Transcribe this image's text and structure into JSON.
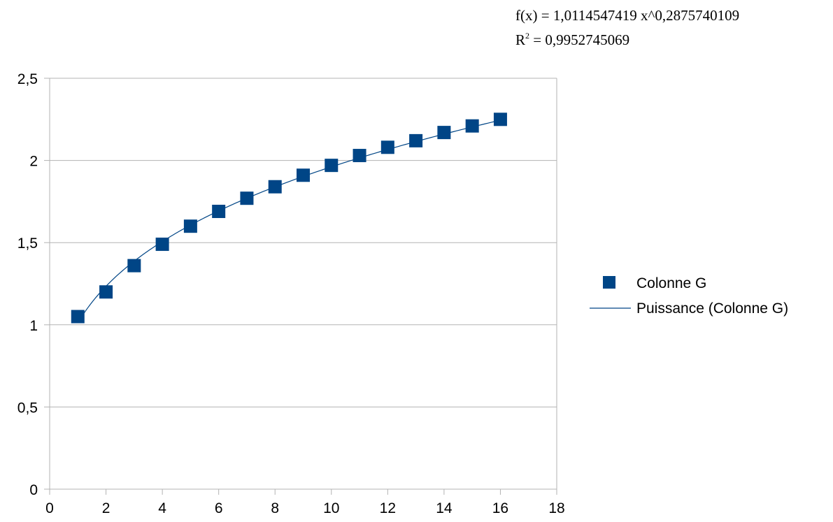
{
  "chart_data": {
    "type": "scatter",
    "title": "",
    "xlabel": "",
    "ylabel": "",
    "xlim": [
      0,
      18
    ],
    "ylim": [
      0,
      2.5
    ],
    "x_ticks": [
      0,
      2,
      4,
      6,
      8,
      10,
      12,
      14,
      16,
      18
    ],
    "x_tick_labels": [
      "0",
      "2",
      "4",
      "6",
      "8",
      "10",
      "12",
      "14",
      "16",
      "18"
    ],
    "y_ticks": [
      0,
      0.5,
      1,
      1.5,
      2,
      2.5
    ],
    "y_tick_labels": [
      "0",
      "0,5",
      "1",
      "1,5",
      "2",
      "2,5"
    ],
    "grid": "horizontal",
    "legend_position": "right",
    "series": [
      {
        "name": "Colonne G",
        "marker": "square",
        "color": "#004586",
        "x": [
          1,
          2,
          3,
          4,
          5,
          6,
          7,
          8,
          9,
          10,
          11,
          12,
          13,
          14,
          15,
          16
        ],
        "y": [
          1.05,
          1.2,
          1.36,
          1.49,
          1.6,
          1.69,
          1.77,
          1.84,
          1.91,
          1.97,
          2.03,
          2.08,
          2.12,
          2.17,
          2.21,
          2.25
        ]
      }
    ],
    "trendline": {
      "name": "Puissance (Colonne G)",
      "type": "power",
      "coefficient": 1.0114547419,
      "exponent": 0.2875740109,
      "x_range": [
        1,
        16
      ],
      "color": "#004586"
    },
    "annotations": {
      "equation": "f(x) = 1,0114547419 x^0,2875740109",
      "r2_label": "R",
      "r2_sup": "2",
      "r2_value": " = 0,9952745069"
    }
  }
}
